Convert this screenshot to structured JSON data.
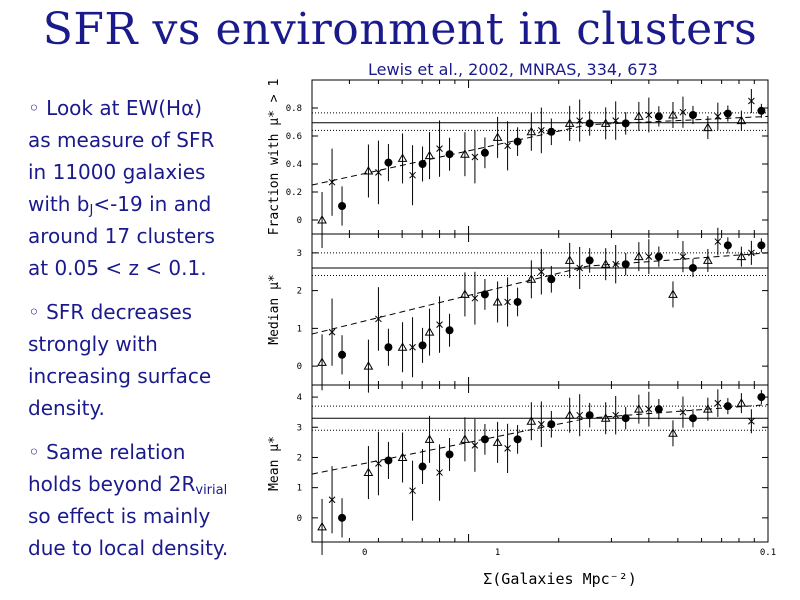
{
  "slide": {
    "title": "SFR vs environment in clusters",
    "citation": "Lewis et al., 2002, MNRAS, 334, 673",
    "bullets": [
      {
        "lines": [
          "◦ Look at EW(Hα)",
          "as measure of SFR",
          "in 11000 galaxies",
          "with b",
          "around 17 clusters",
          "at  0.05 < z < 0.1."
        ],
        "sub": "J",
        "sub_after": "<-19 in and"
      },
      {
        "lines": [
          "◦ SFR decreases",
          "strongly with",
          "increasing surface",
          "density."
        ]
      },
      {
        "lines": [
          "◦ Same relation",
          "holds beyond 2R",
          "so effect is mainly",
          "due to local density."
        ],
        "sub": "virial"
      }
    ]
  },
  "chart_data": {
    "type": "scatter",
    "xscale": "log",
    "xlim": [
      0.003,
      0.1
    ],
    "x_tick_labels": [
      "0",
      "1",
      "0.1"
    ],
    "xlabel": "Σ(Galaxies Mpc⁻²)",
    "series_names": [
      "filled circles",
      "crosses",
      "triangles",
      "dashed fit"
    ],
    "x": [
      0.0035,
      0.005,
      0.0065,
      0.008,
      0.0105,
      0.0135,
      0.0175,
      0.0235,
      0.031,
      0.04,
      0.052,
      0.068,
      0.088
    ],
    "panels": [
      {
        "ylabel": "Fraction with μ* > 1",
        "ylim": [
          -0.1,
          1.0
        ],
        "yticks": [
          0,
          0.2,
          0.4,
          0.6,
          0.8
        ],
        "y_tick_labels": [
          "0",
          "0.2",
          "0.4",
          "0.6",
          "0.8"
        ],
        "hlines": {
          "solid": 0.695,
          "dotted": [
            0.765,
            0.64
          ]
        },
        "circles": [
          0.1,
          0.41,
          0.4,
          0.47,
          0.48,
          0.56,
          0.63,
          0.69,
          0.69,
          0.74,
          0.75,
          0.76,
          0.78
        ],
        "crosses": [
          0.27,
          0.34,
          0.32,
          0.51,
          0.45,
          0.53,
          0.64,
          0.71,
          0.71,
          0.75,
          0.77,
          0.74,
          0.85
        ],
        "triangles": [
          0.0,
          0.35,
          0.44,
          0.46,
          0.47,
          0.59,
          0.63,
          0.69,
          0.69,
          0.74,
          0.75,
          0.66,
          0.71
        ],
        "fit": [
          [
            0.003,
            0.25
          ],
          [
            0.025,
            0.68
          ],
          [
            0.1,
            0.74
          ]
        ]
      },
      {
        "ylabel": "Median μ*",
        "ylim": [
          -0.5,
          3.5
        ],
        "yticks": [
          0,
          1,
          2,
          3
        ],
        "y_tick_labels": [
          "0",
          "1",
          "2",
          "3"
        ],
        "hlines": {
          "solid": 2.6,
          "dotted": [
            3.0,
            2.4
          ]
        },
        "circles": [
          0.3,
          0.5,
          0.55,
          0.95,
          1.9,
          1.7,
          2.3,
          2.8,
          2.7,
          2.9,
          2.6,
          3.2,
          3.2
        ],
        "crosses": [
          0.9,
          1.25,
          0.5,
          1.1,
          1.8,
          1.7,
          2.5,
          2.6,
          2.7,
          2.9,
          2.9,
          3.3,
          3.0
        ],
        "triangles": [
          0.1,
          0.0,
          0.5,
          0.9,
          1.9,
          1.7,
          2.3,
          2.8,
          2.7,
          2.9,
          1.9,
          2.8,
          2.9
        ],
        "fit": [
          [
            0.003,
            0.85
          ],
          [
            0.025,
            2.65
          ],
          [
            0.1,
            3.0
          ]
        ]
      },
      {
        "ylabel": "Mean μ*",
        "ylim": [
          -0.8,
          4.4
        ],
        "yticks": [
          0,
          1,
          2,
          3,
          4
        ],
        "y_tick_labels": [
          "0",
          "1",
          "2",
          "3",
          "4"
        ],
        "hlines": {
          "solid": 3.3,
          "dotted": [
            3.7,
            2.9
          ]
        },
        "circles": [
          0.0,
          1.9,
          1.7,
          2.1,
          2.6,
          2.6,
          3.1,
          3.4,
          3.3,
          3.6,
          3.3,
          3.7,
          4.0
        ],
        "crosses": [
          0.6,
          1.8,
          0.9,
          1.5,
          2.4,
          2.3,
          3.1,
          3.4,
          3.4,
          3.6,
          3.5,
          3.8,
          3.2
        ],
        "triangles": [
          -0.3,
          1.5,
          2.0,
          2.6,
          2.6,
          2.5,
          3.2,
          3.4,
          3.3,
          3.6,
          2.8,
          3.6,
          3.8
        ],
        "fit": [
          [
            0.003,
            1.45
          ],
          [
            0.025,
            3.3
          ],
          [
            0.1,
            3.75
          ]
        ]
      }
    ]
  }
}
